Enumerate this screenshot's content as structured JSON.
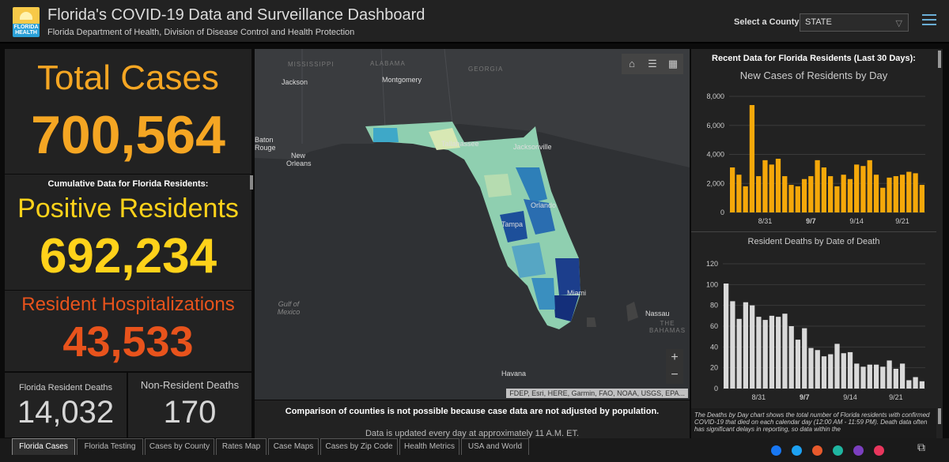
{
  "header": {
    "logo_text": "FLORIDA HEALTH",
    "title": "Florida's COVID-19 Data and Surveillance Dashboard",
    "subtitle": "Florida Department of Health, Division of Disease Control and Health Protection",
    "county_label": "Select a County",
    "county_value": "STATE"
  },
  "left": {
    "total_label": "Total Cases",
    "total_value": "700,564",
    "cumulative_label": "Cumulative Data for Florida Residents:",
    "positive_label": "Positive Residents",
    "positive_value": "692,234",
    "hosp_label": "Resident Hospitalizations",
    "hosp_value": "43,533",
    "res_deaths_label": "Florida Resident Deaths",
    "res_deaths_value": "14,032",
    "nonres_deaths_label": "Non-Resident Deaths",
    "nonres_deaths_value": "170"
  },
  "map": {
    "tools": [
      "home-icon",
      "list-icon",
      "grid-icon"
    ],
    "zoom_in": "+",
    "zoom_out": "−",
    "attribution": "FDEP, Esri, HERE, Garmin, FAO, NOAA, USGS, EPA...",
    "labels": {
      "mississippi": "MISSISSIPPI",
      "alabama": "ALABAMA",
      "georgia": "GEORGIA",
      "jackson": "Jackson",
      "montgomery": "Montgomery",
      "baton_rouge": "Baton Rouge",
      "new_orleans": "New Orleans",
      "tallahassee": "Tallahassee",
      "jacksonville": "Jacksonville",
      "orlando": "Orlando",
      "tampa": "Tampa",
      "miami": "Miami",
      "nassau": "Nassau",
      "bahamas": "THE BAHAMAS",
      "gulf": "Gulf of Mexico",
      "havana": "Havana"
    },
    "comparison_note": "Comparison of counties is not possible because case data are not adjusted by population.",
    "updated_note": "Data is updated every day at approximately 11 A.M. ET."
  },
  "right": {
    "recent_title": "Recent Data for Florida Residents (Last 30 Days):",
    "note": "The Deaths by Day chart shows the total number of Florida residents with confirmed COVID-19 that died on each calendar day (12:00 AM - 11:59 PM). Death data often has significant delays in reporting, so data within the"
  },
  "tabs": [
    "Florida Cases",
    "Florida Testing",
    "Cases by County",
    "Rates Map",
    "Case Maps",
    "Cases by Zip Code",
    "Health Metrics",
    "USA and World"
  ],
  "share_colors": [
    "#1877f2",
    "#1da1f2",
    "#e85a2c",
    "#1fb5a0",
    "#7b3fbf",
    "#e8365d"
  ],
  "colors": {
    "total": "#f5a623",
    "positive": "#ffd21a",
    "hospital": "#e8531c",
    "cases_bar": "#f5a80a",
    "deaths_bar": "#d9d9d9"
  },
  "chart_data": [
    {
      "type": "bar",
      "title": "New Cases of Residents by Day",
      "x_tick_labels": [
        "8/31",
        "9/7",
        "9/14",
        "9/21"
      ],
      "tick_positions": [
        5,
        12,
        19,
        26
      ],
      "ylim": [
        0,
        8000
      ],
      "yticks": [
        "0",
        "2,000",
        "4,000",
        "6,000",
        "8,000"
      ],
      "values": [
        3100,
        2600,
        1800,
        7400,
        2500,
        3600,
        3300,
        3700,
        2500,
        1900,
        1800,
        2300,
        2500,
        3600,
        3100,
        2500,
        1800,
        2600,
        2300,
        3300,
        3200,
        3600,
        2600,
        1700,
        2400,
        2500,
        2600,
        2800,
        2700,
        1900
      ]
    },
    {
      "type": "bar",
      "title": "Resident Deaths by Date of Death",
      "x_tick_labels": [
        "8/31",
        "9/7",
        "9/14",
        "9/21"
      ],
      "tick_positions": [
        5,
        12,
        19,
        26
      ],
      "ylim": [
        0,
        120
      ],
      "yticks": [
        "0",
        "20",
        "40",
        "60",
        "80",
        "100",
        "120"
      ],
      "values": [
        101,
        84,
        67,
        83,
        80,
        69,
        66,
        70,
        69,
        72,
        60,
        47,
        58,
        39,
        37,
        31,
        33,
        43,
        34,
        35,
        24,
        21,
        23,
        23,
        21,
        27,
        19,
        24,
        8,
        11,
        7
      ]
    }
  ]
}
